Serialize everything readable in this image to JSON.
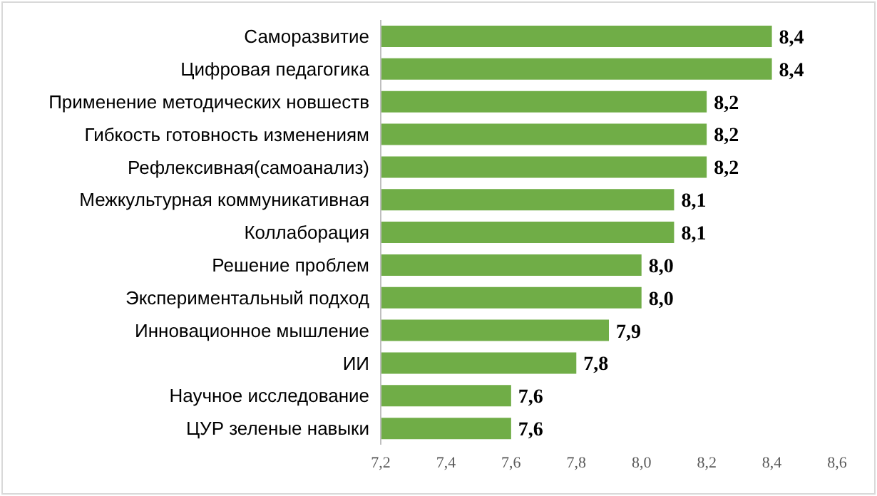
{
  "chart_data": {
    "type": "bar",
    "orientation": "horizontal",
    "categories": [
      "Саморазвитие",
      "Цифровая педагогика",
      "Применение методических новшеств",
      "Гибкость готовность изменениям",
      "Рефлексивная(самоанализ)",
      "Межкультурная коммуникативная",
      "Коллаборация",
      "Решение проблем",
      "Экспериментальный подход",
      "Инновационное мышление",
      "ИИ",
      "Научное исследование",
      "ЦУР зеленые навыки"
    ],
    "values": [
      8.4,
      8.4,
      8.2,
      8.2,
      8.2,
      8.1,
      8.1,
      8.0,
      8.0,
      7.9,
      7.8,
      7.6,
      7.6
    ],
    "value_labels": [
      "8,4",
      "8,4",
      "8,2",
      "8,2",
      "8,2",
      "8,1",
      "8,1",
      "8,0",
      "8,0",
      "7,9",
      "7,8",
      "7,6",
      "7,6"
    ],
    "color": "#70ad47",
    "xlim": [
      7.2,
      8.6
    ],
    "xticks": [
      {
        "value": 7.2,
        "label": "7,2"
      },
      {
        "value": 7.4,
        "label": "7,4"
      },
      {
        "value": 7.6,
        "label": "7,6"
      },
      {
        "value": 7.8,
        "label": "7,8"
      },
      {
        "value": 8.0,
        "label": "8,0"
      },
      {
        "value": 8.2,
        "label": "8,2"
      },
      {
        "value": 8.4,
        "label": "8,4"
      },
      {
        "value": 8.6,
        "label": "8,6"
      }
    ],
    "grid": false,
    "legend": false
  }
}
